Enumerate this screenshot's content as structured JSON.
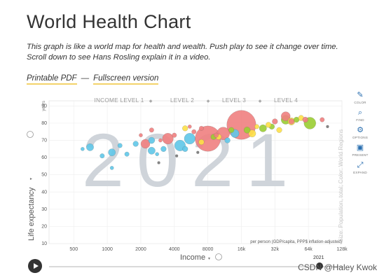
{
  "page": {
    "title": "World Health Chart",
    "description": "This graph is like a world map for health and wealth. Push play to see it change over time. Scroll down to see Hans Rosling explain it in a video.",
    "links": {
      "printable": "Printable PDF",
      "separator": "—",
      "fullscreen": "Fullscreen version"
    }
  },
  "chart_data": {
    "type": "scatter",
    "year": "2021",
    "x_axis": {
      "label": "Income",
      "scale": "log",
      "range": [
        300,
        128000
      ],
      "ticks": [
        "500",
        "1000",
        "2000",
        "4000",
        "8000",
        "16k",
        "32k",
        "64k",
        "128k"
      ],
      "tick_values": [
        500,
        1000,
        2000,
        4000,
        8000,
        16000,
        32000,
        64000,
        128000
      ],
      "unit_note": "per person (GDP/capita, PPP$ inflation-adjusted)"
    },
    "y_axis": {
      "label": "Life expectancy",
      "unit": "years",
      "range": [
        10,
        93
      ],
      "ticks": [
        "10",
        "20",
        "30",
        "40",
        "50",
        "60",
        "70",
        "80",
        "90"
      ],
      "tick_values": [
        10,
        20,
        30,
        40,
        50,
        60,
        70,
        80,
        90
      ]
    },
    "income_levels": [
      "INCOME LEVEL 1",
      "LEVEL 2",
      "LEVEL 3",
      "LEVEL 4"
    ],
    "right_label": "Size: Population, total; Color: World Regions",
    "grid": true,
    "points": [
      {
        "x": 8000,
        "y": 71,
        "s": 14,
        "c": "#f08080"
      },
      {
        "x": 16000,
        "y": 79,
        "s": 16,
        "c": "#f08080"
      },
      {
        "x": 3500,
        "y": 71,
        "s": 6,
        "c": "#f08080"
      },
      {
        "x": 2200,
        "y": 68,
        "s": 5,
        "c": "#f08080"
      },
      {
        "x": 11000,
        "y": 74,
        "s": 7,
        "c": "#f08080"
      },
      {
        "x": 5500,
        "y": 71,
        "s": 6,
        "c": "#5fc7e8"
      },
      {
        "x": 4500,
        "y": 67,
        "s": 6,
        "c": "#5fc7e8"
      },
      {
        "x": 700,
        "y": 66,
        "s": 4,
        "c": "#5fc7e8"
      },
      {
        "x": 1100,
        "y": 63,
        "s": 4,
        "c": "#5fc7e8"
      },
      {
        "x": 2500,
        "y": 64,
        "s": 4,
        "c": "#5fc7e8"
      },
      {
        "x": 2500,
        "y": 70,
        "s": 3.5,
        "c": "#5fc7e8"
      },
      {
        "x": 1800,
        "y": 68,
        "s": 3,
        "c": "#5fc7e8"
      },
      {
        "x": 1500,
        "y": 62,
        "s": 2.5,
        "c": "#5fc7e8"
      },
      {
        "x": 3200,
        "y": 65,
        "s": 3,
        "c": "#5fc7e8"
      },
      {
        "x": 5000,
        "y": 65,
        "s": 3,
        "c": "#5fc7e8"
      },
      {
        "x": 900,
        "y": 61,
        "s": 2.5,
        "c": "#5fc7e8"
      },
      {
        "x": 1300,
        "y": 67,
        "s": 2.5,
        "c": "#5fc7e8"
      },
      {
        "x": 600,
        "y": 65,
        "s": 2,
        "c": "#5fc7e8"
      },
      {
        "x": 14000,
        "y": 74,
        "s": 4.5,
        "c": "#5fc7e8"
      },
      {
        "x": 12000,
        "y": 70,
        "s": 3,
        "c": "#5fc7e8"
      },
      {
        "x": 1100,
        "y": 54,
        "s": 2,
        "c": "#5fc7e8"
      },
      {
        "x": 2800,
        "y": 62,
        "s": 2,
        "c": "#5fc7e8"
      },
      {
        "x": 40000,
        "y": 82,
        "s": 5,
        "c": "#9acd32"
      },
      {
        "x": 66000,
        "y": 80,
        "s": 6.5,
        "c": "#9acd32"
      },
      {
        "x": 25000,
        "y": 77,
        "s": 4,
        "c": "#9acd32"
      },
      {
        "x": 18000,
        "y": 76,
        "s": 3.5,
        "c": "#9acd32"
      },
      {
        "x": 9000,
        "y": 72,
        "s": 3,
        "c": "#9acd32"
      },
      {
        "x": 13000,
        "y": 76,
        "s": 3,
        "c": "#9acd32"
      },
      {
        "x": 30000,
        "y": 78,
        "s": 3,
        "c": "#9acd32"
      },
      {
        "x": 50000,
        "y": 82,
        "s": 3,
        "c": "#9acd32"
      },
      {
        "x": 20000,
        "y": 74,
        "s": 4,
        "c": "#fde047"
      },
      {
        "x": 28000,
        "y": 79,
        "s": 3,
        "c": "#fde047"
      },
      {
        "x": 45000,
        "y": 81,
        "s": 4,
        "c": "#fde047"
      },
      {
        "x": 35000,
        "y": 76,
        "s": 3,
        "c": "#fde047"
      },
      {
        "x": 55000,
        "y": 83,
        "s": 3,
        "c": "#fde047"
      },
      {
        "x": 7000,
        "y": 69,
        "s": 3,
        "c": "#fde047"
      },
      {
        "x": 10000,
        "y": 72,
        "s": 3,
        "c": "#fde047"
      },
      {
        "x": 22000,
        "y": 78,
        "s": 2.5,
        "c": "#fde047"
      },
      {
        "x": 5000,
        "y": 77,
        "s": 3,
        "c": "#fde047"
      },
      {
        "x": 40000,
        "y": 84,
        "s": 5,
        "c": "#f08080"
      },
      {
        "x": 60000,
        "y": 82,
        "s": 3,
        "c": "#f08080"
      },
      {
        "x": 32000,
        "y": 81,
        "s": 3,
        "c": "#f08080"
      },
      {
        "x": 45000,
        "y": 81,
        "s": 3,
        "c": "#f08080"
      },
      {
        "x": 85000,
        "y": 82,
        "s": 2.5,
        "c": "#f08080"
      },
      {
        "x": 2500,
        "y": 76,
        "s": 2.5,
        "c": "#f08080"
      },
      {
        "x": 2000,
        "y": 73,
        "s": 2,
        "c": "#f08080"
      },
      {
        "x": 9500,
        "y": 73,
        "s": 2.5,
        "c": "#f08080"
      },
      {
        "x": 4000,
        "y": 73,
        "s": 2.5,
        "c": "#f08080"
      },
      {
        "x": 7000,
        "y": 77,
        "s": 2.5,
        "c": "#f08080"
      },
      {
        "x": 6000,
        "y": 75,
        "s": 2.5,
        "c": "#f08080"
      },
      {
        "x": 5500,
        "y": 78,
        "s": 2,
        "c": "#f08080"
      },
      {
        "x": 3000,
        "y": 70,
        "s": 2,
        "c": "#f08080"
      },
      {
        "x": 95000,
        "y": 78,
        "s": 1.5,
        "c": "#777"
      },
      {
        "x": 6500,
        "y": 63,
        "s": 1.5,
        "c": "#777"
      },
      {
        "x": 2900,
        "y": 57,
        "s": 1.5,
        "c": "#777"
      },
      {
        "x": 4200,
        "y": 61,
        "s": 1.5,
        "c": "#777"
      }
    ]
  },
  "tools": [
    {
      "icon": "pencil-icon",
      "glyph": "✎",
      "label": "COLOR"
    },
    {
      "icon": "search-icon",
      "glyph": "⌕",
      "label": "FIND"
    },
    {
      "icon": "gear-icon",
      "glyph": "⚙",
      "label": "OPTIONS"
    },
    {
      "icon": "present-icon",
      "glyph": "▣",
      "label": "PRESENT"
    },
    {
      "icon": "expand-icon",
      "glyph": "⤢",
      "label": "EXPAND"
    }
  ],
  "timeline": {
    "year": "2021"
  },
  "watermark": "CSDN @Haley Kwok"
}
